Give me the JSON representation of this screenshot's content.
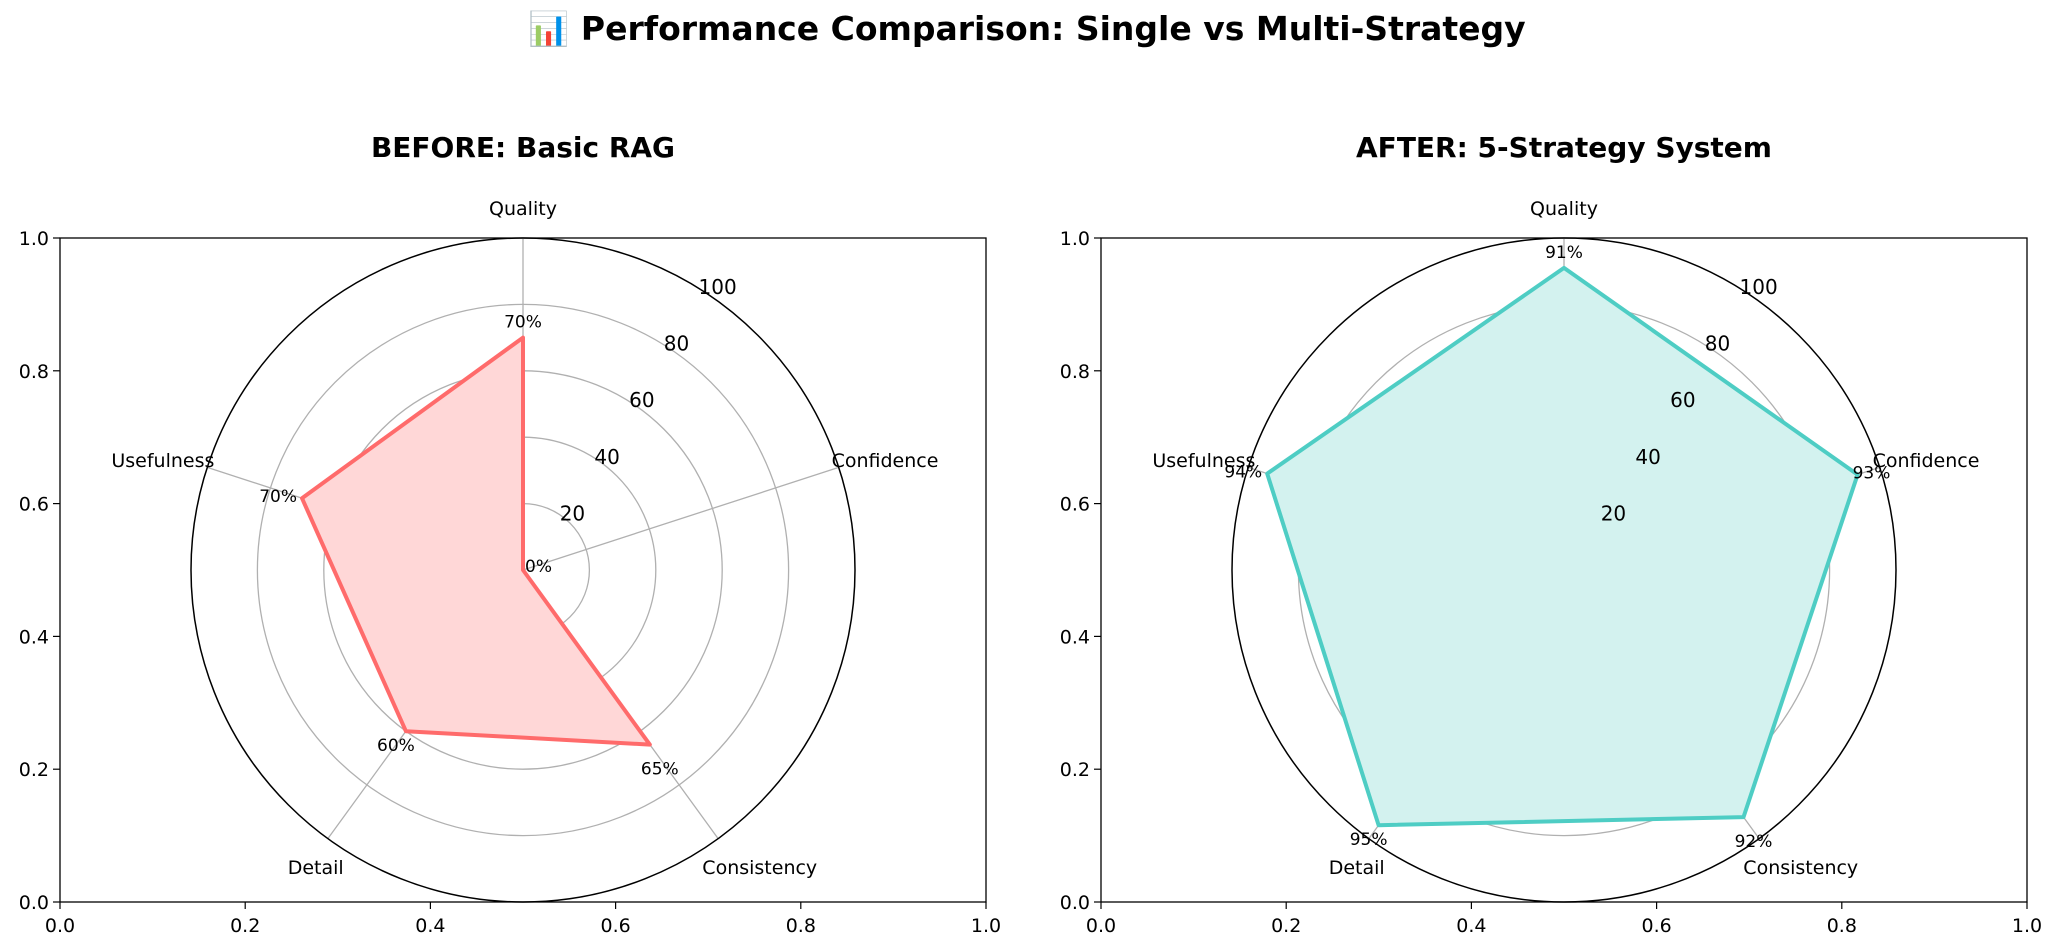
{
  "title": "📊 Performance Comparison: Single vs Multi-Strategy",
  "chart_data": [
    {
      "type": "radar",
      "title": "BEFORE: Basic RAG",
      "categories": [
        "Quality",
        "Confidence",
        "Consistency",
        "Detail",
        "Usefulness"
      ],
      "values": [
        70,
        0,
        65,
        60,
        70
      ],
      "value_labels": [
        "70%",
        "0%",
        "65%",
        "60%",
        "70%"
      ],
      "rticks": [
        20,
        40,
        60,
        80,
        100
      ],
      "rlim": [
        0,
        100
      ],
      "cartesian_ticks": [
        "0.0",
        "0.2",
        "0.4",
        "0.6",
        "0.8",
        "1.0"
      ],
      "color": "#ff6b6b",
      "fill_color": "#ffd7d7",
      "grid": true
    },
    {
      "type": "radar",
      "title": "AFTER: 5-Strategy System",
      "categories": [
        "Quality",
        "Confidence",
        "Consistency",
        "Detail",
        "Usefulness"
      ],
      "values": [
        91,
        93,
        92,
        95,
        94
      ],
      "value_labels": [
        "91%",
        "93%",
        "92%",
        "95%",
        "94%"
      ],
      "rticks": [
        20,
        40,
        60,
        80,
        100
      ],
      "rlim": [
        0,
        100
      ],
      "cartesian_ticks": [
        "0.0",
        "0.2",
        "0.4",
        "0.6",
        "0.8",
        "1.0"
      ],
      "color": "#4ecdc4",
      "fill_color": "#d3f2ef",
      "grid": true
    }
  ]
}
